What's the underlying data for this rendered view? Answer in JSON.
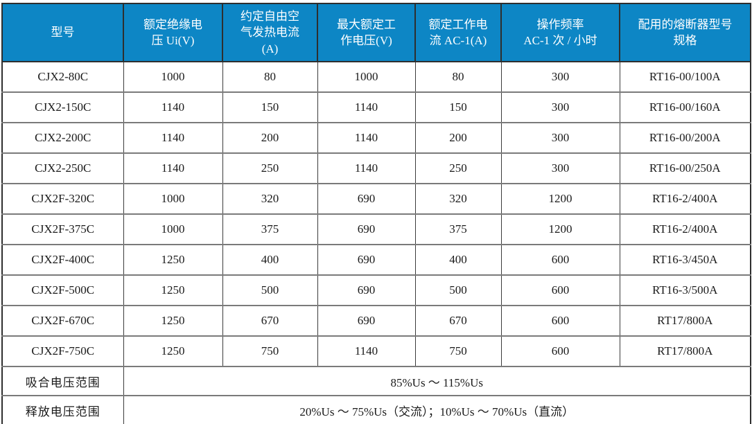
{
  "table": {
    "title": "CJX2 / CJX2F contactor specifications",
    "colors": {
      "header_bg": "#0d86c5",
      "header_text": "#ffffff",
      "outer_border": "#2e2e2e",
      "row_line": "#7a7a7a",
      "column_line": "#3a3a3a",
      "body_text": "#1a1a1a"
    },
    "columns": [
      {
        "key": "model",
        "label": "型号"
      },
      {
        "key": "rated-insulation-voltage",
        "label": "额定绝缘电\n压 Ui(V)"
      },
      {
        "key": "free-air-thermal-current",
        "label": "约定自由空\n气发热电流\n(A)"
      },
      {
        "key": "max-rated-operating-voltage",
        "label": "最大额定工\n作电压(V)"
      },
      {
        "key": "rated-operating-current",
        "label": "额定工作电\n流 AC-1(A)"
      },
      {
        "key": "operating-frequency",
        "label": "操作频率\nAC-1 次 / 小时"
      },
      {
        "key": "fuse-spec",
        "label": "配用的熔断器型号\n规格"
      }
    ],
    "rows": [
      {
        "cells": [
          "CJX2-80C",
          "1000",
          "80",
          "1000",
          "80",
          "300",
          "RT16-00/100A"
        ]
      },
      {
        "cells": [
          "CJX2-150C",
          "1140",
          "150",
          "1140",
          "150",
          "300",
          "RT16-00/160A"
        ]
      },
      {
        "cells": [
          "CJX2-200C",
          "1140",
          "200",
          "1140",
          "200",
          "300",
          "RT16-00/200A"
        ]
      },
      {
        "cells": [
          "CJX2-250C",
          "1140",
          "250",
          "1140",
          "250",
          "300",
          "RT16-00/250A"
        ]
      },
      {
        "cells": [
          "CJX2F-320C",
          "1000",
          "320",
          "690",
          "320",
          "1200",
          "RT16-2/400A"
        ]
      },
      {
        "cells": [
          "CJX2F-375C",
          "1000",
          "375",
          "690",
          "375",
          "1200",
          "RT16-2/400A"
        ]
      },
      {
        "cells": [
          "CJX2F-400C",
          "1250",
          "400",
          "690",
          "400",
          "600",
          "RT16-3/450A"
        ]
      },
      {
        "cells": [
          "CJX2F-500C",
          "1250",
          "500",
          "690",
          "500",
          "600",
          "RT16-3/500A"
        ]
      },
      {
        "cells": [
          "CJX2F-670C",
          "1250",
          "670",
          "690",
          "670",
          "600",
          "RT17/800A"
        ]
      },
      {
        "cells": [
          "CJX2F-750C",
          "1250",
          "750",
          "1140",
          "750",
          "600",
          "RT17/800A"
        ]
      }
    ],
    "footer": [
      {
        "key": "pickup-voltage-range",
        "label": "吸合电压范围",
        "value": "85%Us ～ 115%Us"
      },
      {
        "key": "release-voltage-range",
        "label": "释放电压范围",
        "value": "20%Us ～ 75%Us（交流）；10%Us ～ 70%Us（直流）"
      }
    ]
  }
}
